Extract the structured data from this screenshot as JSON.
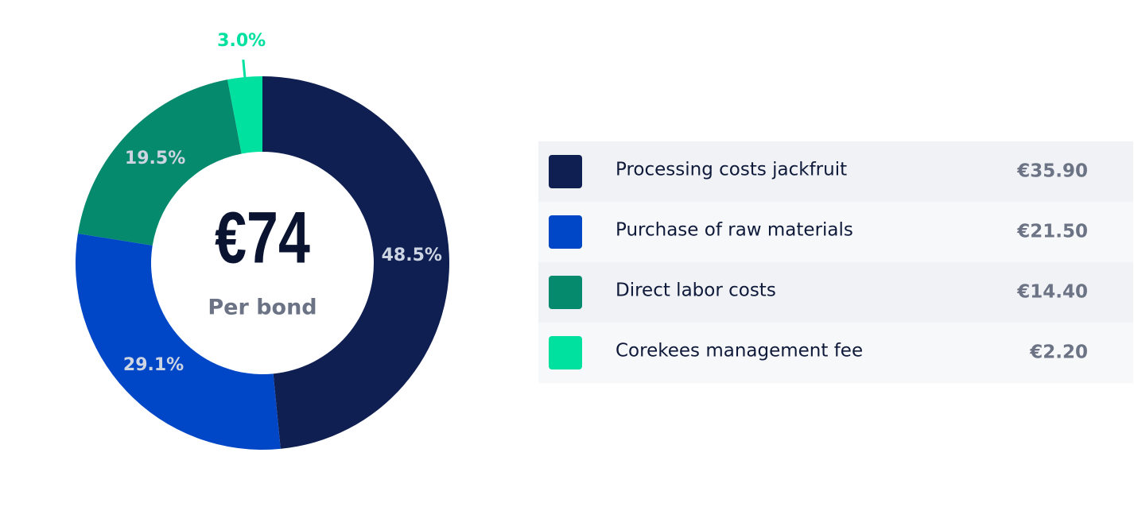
{
  "chart_data": {
    "type": "pie",
    "categories": [
      "Processing costs jackfruit",
      "Purchase of raw materials",
      "Direct labor costs",
      "Corekees management fee"
    ],
    "values": [
      48.5,
      29.1,
      19.5,
      3.0
    ],
    "value_labels": [
      "48.5%",
      "29.1%",
      "19.5%",
      "3.0%"
    ],
    "colors": [
      "#0f1f52",
      "#0047c8",
      "#058a6d",
      "#00e09f"
    ],
    "center_value": "€74",
    "center_label": "Per bond",
    "legend_amounts": [
      "€35.90",
      "€21.50",
      "€14.40",
      "€2.20"
    ]
  }
}
